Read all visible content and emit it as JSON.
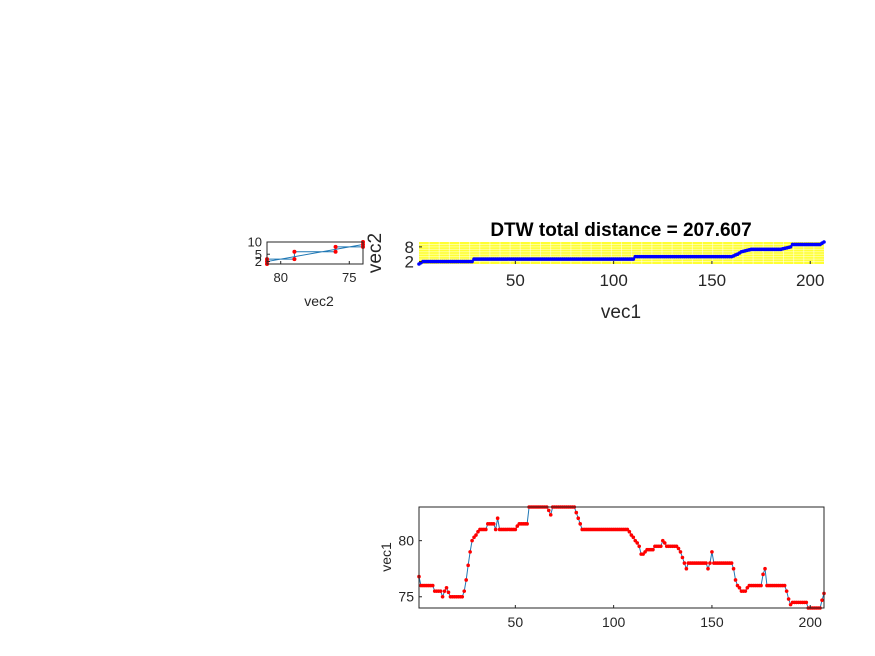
{
  "chart_data": [
    {
      "id": "warp",
      "type": "line",
      "title": "DTW total distance = 207.607",
      "xlabel": "vec1",
      "ylabel": "vec2",
      "xlim": [
        1,
        207
      ],
      "ylim": [
        1,
        10
      ],
      "xticks": [
        50,
        100,
        150,
        200
      ],
      "yticks": [
        2,
        8
      ],
      "background": "#ffff33",
      "grid": true,
      "line_color": "#0000ff",
      "path": [
        [
          1,
          1
        ],
        [
          3,
          2
        ],
        [
          28,
          2
        ],
        [
          29,
          3
        ],
        [
          110,
          3
        ],
        [
          111,
          4
        ],
        [
          150,
          4
        ],
        [
          160,
          4
        ],
        [
          163,
          5
        ],
        [
          165,
          6
        ],
        [
          170,
          7
        ],
        [
          185,
          7
        ],
        [
          190,
          8
        ],
        [
          191,
          9
        ],
        [
          205,
          9
        ],
        [
          207,
          10
        ]
      ]
    },
    {
      "id": "vec2",
      "type": "line",
      "xlabel": "vec2",
      "ylabel": "",
      "xlim": [
        81,
        74
      ],
      "ylim": [
        1,
        10
      ],
      "xticks": [
        80,
        75
      ],
      "yticks": [
        2,
        5,
        10
      ],
      "line_color": "#1f77b4",
      "marker_color": "#ff0000",
      "series": [
        {
          "x": [
            81,
            81,
            79,
            79,
            76,
            76,
            74,
            74,
            74,
            81
          ],
          "y": [
            1,
            3,
            3,
            6,
            6,
            8,
            8,
            10,
            9,
            2
          ]
        }
      ]
    },
    {
      "id": "vec1",
      "type": "line",
      "xlabel": "",
      "ylabel": "vec1",
      "xlim": [
        1,
        207
      ],
      "ylim": [
        74,
        83
      ],
      "xticks": [
        50,
        100,
        150,
        200
      ],
      "yticks": [
        75,
        80
      ],
      "line_color": "#1f77b4",
      "marker_color": "#ff0000",
      "series": [
        {
          "name": "vec1",
          "keyframes": [
            [
              1,
              76.8
            ],
            [
              2,
              76
            ],
            [
              8,
              76
            ],
            [
              9,
              75.5
            ],
            [
              12,
              75.5
            ],
            [
              13,
              75
            ],
            [
              14,
              75.5
            ],
            [
              15,
              75.8
            ],
            [
              16,
              75.4
            ],
            [
              17,
              75
            ],
            [
              23,
              75
            ],
            [
              24,
              75.5
            ],
            [
              25,
              76.5
            ],
            [
              26,
              77.8
            ],
            [
              27,
              79
            ],
            [
              28,
              80
            ],
            [
              30,
              80.5
            ],
            [
              32,
              81
            ],
            [
              35,
              81
            ],
            [
              36,
              81.5
            ],
            [
              39,
              81.5
            ],
            [
              40,
              81
            ],
            [
              41,
              82
            ],
            [
              42,
              81
            ],
            [
              50,
              81
            ],
            [
              52,
              81.5
            ],
            [
              56,
              81.5
            ],
            [
              57,
              83
            ],
            [
              66,
              83
            ],
            [
              68,
              82.3
            ],
            [
              69,
              83
            ],
            [
              80,
              83
            ],
            [
              81,
              82.5
            ],
            [
              83,
              81.5
            ],
            [
              84,
              81
            ],
            [
              107,
              81
            ],
            [
              109,
              80.5
            ],
            [
              111,
              80
            ],
            [
              113,
              79.5
            ],
            [
              114,
              78.8
            ],
            [
              115,
              78.8
            ],
            [
              117,
              79.2
            ],
            [
              120,
              79.2
            ],
            [
              121,
              79.5
            ],
            [
              124,
              79.5
            ],
            [
              125,
              80
            ],
            [
              127,
              79.5
            ],
            [
              132,
              79.5
            ],
            [
              134,
              79
            ],
            [
              136,
              78
            ],
            [
              137,
              77.5
            ],
            [
              138,
              78
            ],
            [
              147,
              78
            ],
            [
              148,
              77.5
            ],
            [
              149,
              78
            ],
            [
              150,
              79
            ],
            [
              151,
              78
            ],
            [
              160,
              78
            ],
            [
              161,
              77.5
            ],
            [
              162,
              76.5
            ],
            [
              163,
              76
            ],
            [
              165,
              75.5
            ],
            [
              167,
              75.5
            ],
            [
              169,
              76
            ],
            [
              175,
              76
            ],
            [
              176,
              77
            ],
            [
              177,
              77.5
            ],
            [
              178,
              76
            ],
            [
              187,
              76
            ],
            [
              188,
              75.5
            ],
            [
              189,
              74.8
            ],
            [
              190,
              74.3
            ],
            [
              191,
              74.5
            ],
            [
              198,
              74.5
            ],
            [
              199,
              74
            ],
            [
              205,
              74
            ],
            [
              207,
              75.3
            ]
          ]
        }
      ]
    }
  ]
}
